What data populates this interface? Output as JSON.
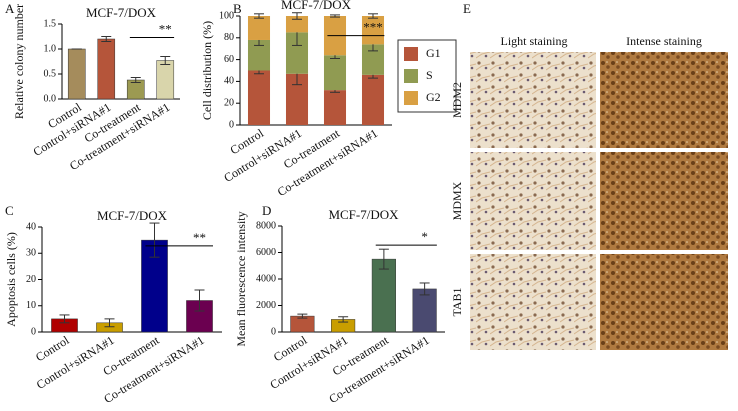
{
  "chart_data": [
    {
      "type": "bar",
      "panel": "A",
      "title": "MCF-7/DOX",
      "ylabel": "Relative colony number",
      "categories": [
        "Control",
        "Control+siRNA#1",
        "Co-treatment",
        "Co-treatment+siRNA#1"
      ],
      "values": [
        1.0,
        1.2,
        0.38,
        0.77
      ],
      "errors": [
        0,
        0.05,
        0.05,
        0.08
      ],
      "colors": [
        "#a58c5c",
        "#b5553a",
        "#9c9a52",
        "#d9d5ab"
      ],
      "ylim": [
        0,
        1.5
      ],
      "yticks": [
        {
          "value": 0,
          "label": "0.0"
        },
        {
          "value": 0.5,
          "label": "0.5"
        },
        {
          "value": 1,
          "label": "1.0"
        },
        {
          "value": 1.5,
          "label": "1.5"
        }
      ],
      "annotation": "**"
    },
    {
      "type": "stacked_bar",
      "panel": "B",
      "title": "MCF-7/DOX",
      "ylabel": "Cell distribution (%)",
      "categories": [
        "Control",
        "Control+siRNA#1",
        "Co-treatment",
        "Co-treatment+siRNA#1"
      ],
      "series": [
        {
          "name": "G1",
          "color": "#b5553a",
          "values": [
            50,
            47,
            32,
            46
          ],
          "errors": [
            3,
            10,
            2,
            3
          ]
        },
        {
          "name": "S",
          "color": "#909b52",
          "values": [
            28,
            38,
            32,
            28
          ],
          "errors": [
            5,
            12,
            3,
            6
          ]
        },
        {
          "name": "G2",
          "color": "#d9a043",
          "values": [
            22,
            15,
            36,
            26
          ],
          "errors": [
            2,
            3,
            1,
            2
          ]
        }
      ],
      "ylim": [
        0,
        100
      ],
      "yticks": [
        0,
        20,
        40,
        60,
        80,
        100
      ],
      "annotation": "***"
    },
    {
      "type": "bar",
      "panel": "C",
      "title": "MCF-7/DOX",
      "ylabel": "Apoptosis cells (%)",
      "categories": [
        "Control",
        "Control+siRNA#1",
        "Co-treatment",
        "Co-treatment+siRNA#1"
      ],
      "values": [
        5,
        3.5,
        35,
        12
      ],
      "errors": [
        1.5,
        1.5,
        6.5,
        4
      ],
      "colors": [
        "#b00000",
        "#c99e00",
        "#00008b",
        "#6b0050"
      ],
      "ylim": [
        0,
        40
      ],
      "yticks": [
        0,
        10,
        20,
        30,
        40
      ],
      "annotation": "**"
    },
    {
      "type": "bar",
      "panel": "D",
      "title": "MCF-7/DOX",
      "ylabel": "Mean fluorescence intensity",
      "categories": [
        "Control",
        "Control+siRNA#1",
        "Co-treatment",
        "Co-treatment+siRNA#1"
      ],
      "values": [
        1200,
        950,
        5500,
        3250
      ],
      "errors": [
        150,
        200,
        750,
        450
      ],
      "colors": [
        "#b5553a",
        "#c99e00",
        "#4a7050",
        "#4a4a70"
      ],
      "ylim": [
        0,
        8000
      ],
      "yticks": [
        0,
        2000,
        4000,
        6000,
        8000
      ],
      "annotation": "*"
    }
  ],
  "figure_e": {
    "panel": "E",
    "columns": [
      "Light staining",
      "Intense staining"
    ],
    "rows": [
      "MDM2",
      "MDMX",
      "TAB1"
    ]
  }
}
